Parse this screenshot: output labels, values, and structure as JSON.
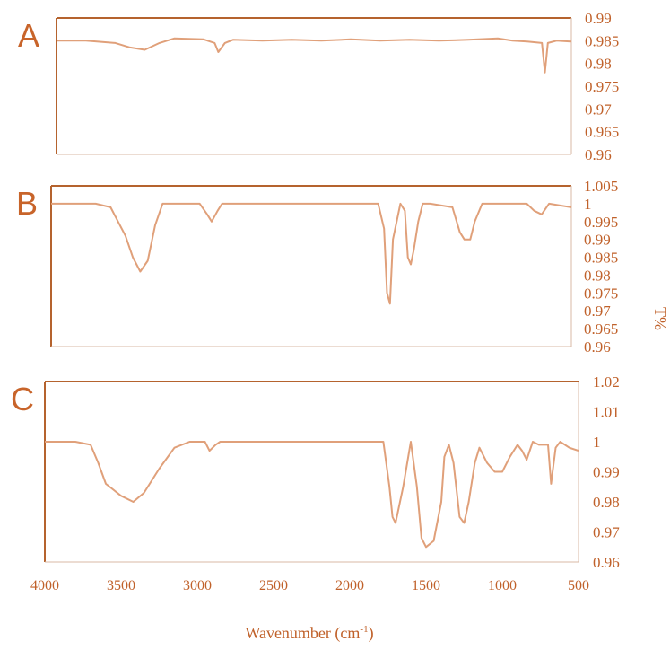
{
  "colors": {
    "axis": "#b5632e",
    "trace": "#e0a07a",
    "text": "#c0612a",
    "letter": "#c8642a"
  },
  "axes": {
    "x_label_main": "Wavenumber (cm",
    "x_label_sup": "-1",
    "x_label_close": ")",
    "y_label": "T%"
  },
  "chart_data": [
    {
      "panel": "A",
      "type": "line",
      "xlim": [
        4000,
        500
      ],
      "ylim": [
        0.96,
        0.99
      ],
      "ytick_labels": [
        "0.99",
        "0.985",
        "0.98",
        "0.975",
        "0.97",
        "0.965",
        "0.96"
      ],
      "x": [
        4000,
        3800,
        3600,
        3500,
        3400,
        3300,
        3200,
        3000,
        2925,
        2900,
        2855,
        2800,
        2600,
        2400,
        2200,
        2000,
        1800,
        1600,
        1400,
        1200,
        1000,
        900,
        800,
        700,
        680,
        660,
        600,
        500
      ],
      "y": [
        0.985,
        0.985,
        0.9845,
        0.9835,
        0.983,
        0.9845,
        0.9855,
        0.9853,
        0.9845,
        0.9825,
        0.9845,
        0.9852,
        0.985,
        0.9852,
        0.985,
        0.9853,
        0.985,
        0.9852,
        0.985,
        0.9852,
        0.9855,
        0.985,
        0.9848,
        0.9845,
        0.978,
        0.9845,
        0.985,
        0.9848
      ]
    },
    {
      "panel": "B",
      "type": "line",
      "xlim": [
        4000,
        500
      ],
      "ylim": [
        0.96,
        1.005
      ],
      "ytick_labels": [
        "1.005",
        "1",
        "0.995",
        "0.99",
        "0.985",
        "0.98",
        "0.975",
        "0.97",
        "0.965",
        "0.96"
      ],
      "x": [
        4000,
        3700,
        3600,
        3500,
        3450,
        3400,
        3350,
        3300,
        3250,
        3000,
        2950,
        2920,
        2880,
        2850,
        2800,
        2000,
        1800,
        1760,
        1740,
        1720,
        1700,
        1650,
        1620,
        1600,
        1580,
        1560,
        1530,
        1500,
        1450,
        1300,
        1250,
        1220,
        1180,
        1150,
        1100,
        800,
        750,
        700,
        650,
        500
      ],
      "y": [
        1.0,
        1.0,
        0.999,
        0.991,
        0.985,
        0.981,
        0.984,
        0.994,
        1.0,
        1.0,
        0.997,
        0.995,
        0.998,
        1.0,
        1.0,
        1.0,
        1.0,
        0.993,
        0.975,
        0.972,
        0.99,
        1.0,
        0.998,
        0.985,
        0.983,
        0.987,
        0.995,
        1.0,
        1.0,
        0.999,
        0.992,
        0.99,
        0.99,
        0.995,
        1.0,
        1.0,
        0.998,
        0.997,
        1.0,
        0.999
      ]
    },
    {
      "panel": "C",
      "type": "line",
      "xlim": [
        4000,
        500
      ],
      "ylim": [
        0.96,
        1.02
      ],
      "ytick_labels": [
        "1.02",
        "1.01",
        "1",
        "0.99",
        "0.98",
        "0.97",
        "0.96"
      ],
      "x": [
        4000,
        3800,
        3700,
        3650,
        3600,
        3500,
        3420,
        3350,
        3250,
        3150,
        3050,
        2950,
        2920,
        2880,
        2850,
        2000,
        1780,
        1740,
        1720,
        1700,
        1650,
        1600,
        1560,
        1530,
        1500,
        1450,
        1400,
        1380,
        1350,
        1320,
        1280,
        1250,
        1220,
        1180,
        1150,
        1100,
        1050,
        1000,
        950,
        900,
        870,
        840,
        800,
        760,
        700,
        680,
        650,
        620,
        560,
        500
      ],
      "y": [
        1.0,
        1.0,
        0.999,
        0.993,
        0.986,
        0.982,
        0.98,
        0.983,
        0.991,
        0.998,
        1.0,
        1.0,
        0.997,
        0.999,
        1.0,
        1.0,
        1.0,
        0.985,
        0.975,
        0.973,
        0.985,
        1.0,
        0.985,
        0.968,
        0.965,
        0.967,
        0.98,
        0.995,
        0.999,
        0.993,
        0.975,
        0.973,
        0.98,
        0.993,
        0.998,
        0.993,
        0.99,
        0.99,
        0.995,
        0.999,
        0.997,
        0.994,
        1.0,
        0.999,
        0.999,
        0.986,
        0.998,
        1.0,
        0.998,
        0.997
      ]
    }
  ],
  "x_ticks": [
    {
      "value": 4000,
      "label": "4000"
    },
    {
      "value": 3500,
      "label": "3500"
    },
    {
      "value": 3000,
      "label": "3000"
    },
    {
      "value": 2500,
      "label": "2500"
    },
    {
      "value": 2000,
      "label": "2000"
    },
    {
      "value": 1500,
      "label": "1500"
    },
    {
      "value": 1000,
      "label": "1000"
    },
    {
      "value": 500,
      "label": "500"
    }
  ]
}
